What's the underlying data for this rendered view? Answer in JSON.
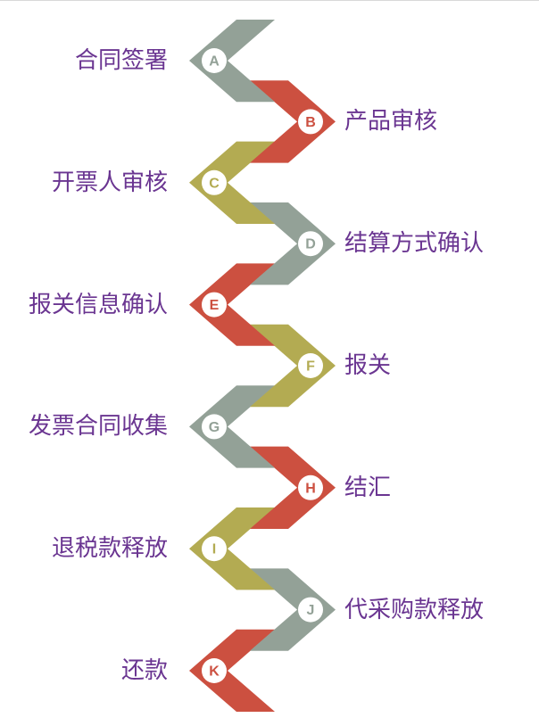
{
  "colors": {
    "gray": "#93a197",
    "red": "#cc5040",
    "olive": "#b3ab52",
    "label": "#6a3591",
    "badge_bg": "#ffffff"
  },
  "steps": [
    {
      "letter": "A",
      "label": "合同签署",
      "color": "gray"
    },
    {
      "letter": "B",
      "label": "产品审核",
      "color": "red"
    },
    {
      "letter": "C",
      "label": "开票人审核",
      "color": "olive"
    },
    {
      "letter": "D",
      "label": "结算方式确认",
      "color": "gray"
    },
    {
      "letter": "E",
      "label": "报关信息确认",
      "color": "red"
    },
    {
      "letter": "F",
      "label": "报关",
      "color": "olive"
    },
    {
      "letter": "G",
      "label": "发票合同收集",
      "color": "gray"
    },
    {
      "letter": "H",
      "label": "结汇",
      "color": "red"
    },
    {
      "letter": "I",
      "label": "退税款释放",
      "color": "olive"
    },
    {
      "letter": "J",
      "label": "代采购款释放",
      "color": "gray"
    },
    {
      "letter": "K",
      "label": "还款",
      "color": "red"
    }
  ]
}
